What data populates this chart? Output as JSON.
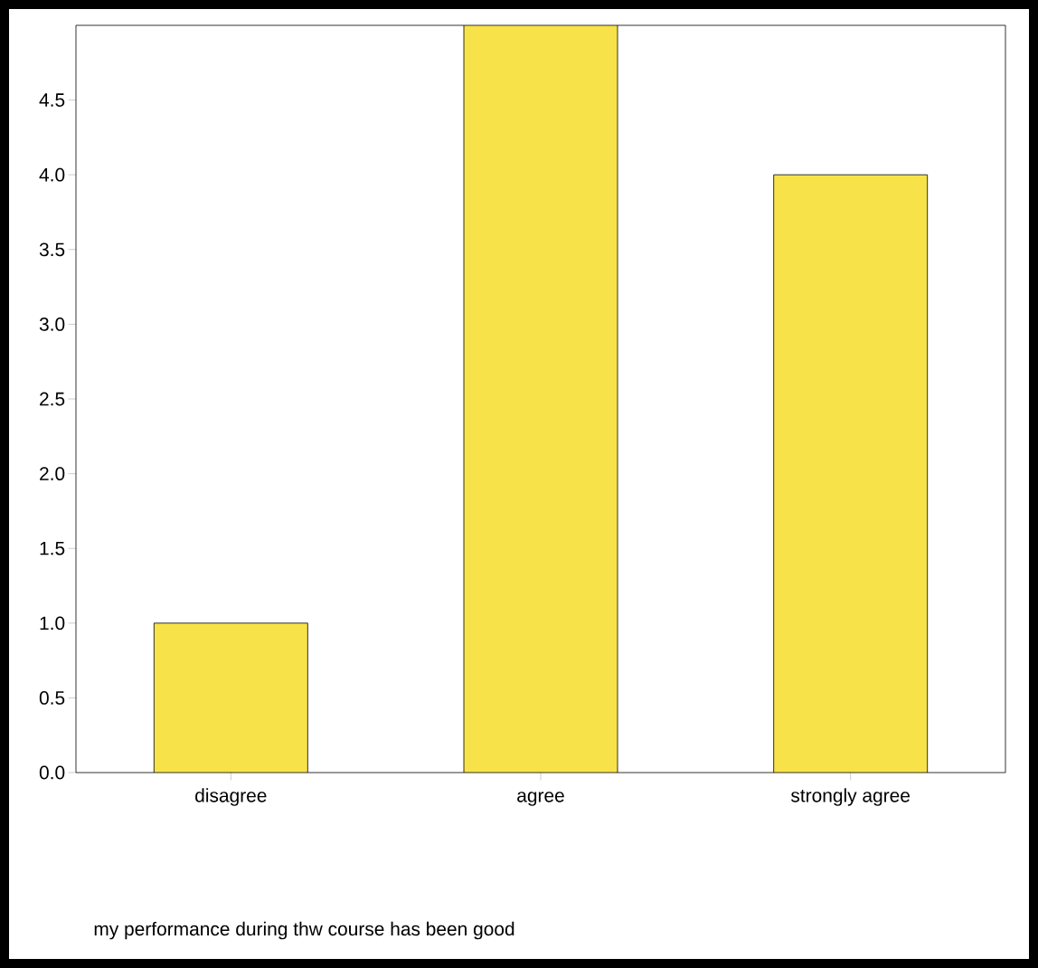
{
  "chart_data": {
    "type": "bar",
    "annotations": [
      "my performance during thw course has been good"
    ],
    "categories": [
      "disagree",
      "agree",
      "strongly agree"
    ],
    "values": [
      1,
      5,
      4
    ],
    "color": "#f7e24a",
    "ylim": [
      0,
      5
    ],
    "yticks": [
      {
        "value": 0,
        "label": "0.0"
      },
      {
        "value": 0.5,
        "label": "0.5"
      },
      {
        "value": 1,
        "label": "1.0"
      },
      {
        "value": 1.5,
        "label": "1.5"
      },
      {
        "value": 2,
        "label": "2.0"
      },
      {
        "value": 2.5,
        "label": "2.5"
      },
      {
        "value": 3,
        "label": "3.0"
      },
      {
        "value": 3.5,
        "label": "3.5"
      },
      {
        "value": 4,
        "label": "4.0"
      },
      {
        "value": 4.5,
        "label": "4.5"
      }
    ],
    "grid": false
  }
}
